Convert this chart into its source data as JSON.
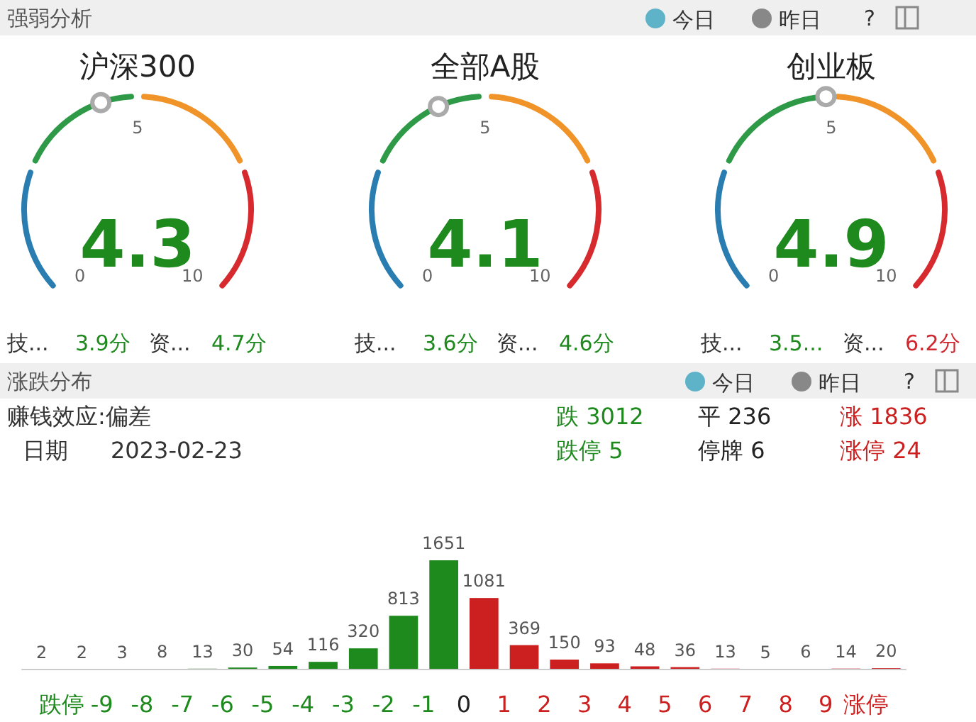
{
  "chart_data": [
    {
      "type": "other",
      "title": "强弱分析",
      "annotations": [
        "今日",
        "昨日",
        "?"
      ]
    },
    {
      "type": "other",
      "title": "沪深300",
      "color": "#1e8a1e",
      "annotations": [
        "0",
        "5",
        "10",
        "4.3",
        "技...",
        "3.9分",
        "资...",
        "4.7分"
      ]
    },
    {
      "type": "other",
      "title": "全部A股",
      "color": "#1e8a1e",
      "annotations": [
        "0",
        "5",
        "10",
        "4.1",
        "技...",
        "3.6分",
        "资...",
        "4.6分"
      ]
    },
    {
      "type": "other",
      "title": "创业板",
      "color": "#1e8a1e",
      "annotations": [
        "0",
        "5",
        "10",
        "4.9",
        "技...",
        "3.5...",
        "资...",
        "6.2分"
      ]
    },
    {
      "type": "bar",
      "title": "涨跌分布",
      "annotations": [
        "今日",
        "昨日",
        "?",
        "赚钱效应:偏差",
        "日期",
        "2023-02-23",
        "跌 3012",
        "平 236",
        "涨 1836",
        "跌停 5",
        "停牌 6",
        "涨停 24"
      ],
      "x": [
        -10.5,
        -9.5,
        -8.5,
        -7.5,
        -6.5,
        -5.5,
        -4.5,
        -3.5,
        -2.5,
        -1.5,
        -0.5,
        0.5,
        1.5,
        2.5,
        3.5,
        4.5,
        5.5,
        6.5,
        7.5,
        8.5,
        9.5,
        10.5
      ],
      "values": [
        2,
        2,
        3,
        8,
        13,
        30,
        54,
        116,
        320,
        813,
        1651,
        1081,
        369,
        150,
        93,
        48,
        36,
        13,
        5,
        6,
        14,
        20
      ],
      "colors": [
        "#1e8a1e",
        "#1e8a1e",
        "#1e8a1e",
        "#1e8a1e",
        "#1e8a1e",
        "#1e8a1e",
        "#1e8a1e",
        "#1e8a1e",
        "#1e8a1e",
        "#1e8a1e",
        "#1e8a1e",
        "#cc1f1f",
        "#cc1f1f",
        "#cc1f1f",
        "#cc1f1f",
        "#cc1f1f",
        "#cc1f1f",
        "#cc1f1f",
        "#cc1f1f",
        "#cc1f1f",
        "#cc1f1f",
        "#cc1f1f"
      ],
      "xlim": [
        -11,
        11
      ],
      "xticks": [
        {
          "value": -10,
          "label": "跌停"
        },
        -9,
        -8,
        -7,
        -6,
        -5,
        -4,
        -3,
        -2,
        -1,
        0,
        1,
        2,
        3,
        4,
        5,
        6,
        7,
        8,
        9,
        {
          "value": 10,
          "label": "涨停"
        }
      ],
      "ylim": [
        0,
        1651
      ],
      "data_labels": true,
      "tick_labels": "x"
    }
  ]
}
